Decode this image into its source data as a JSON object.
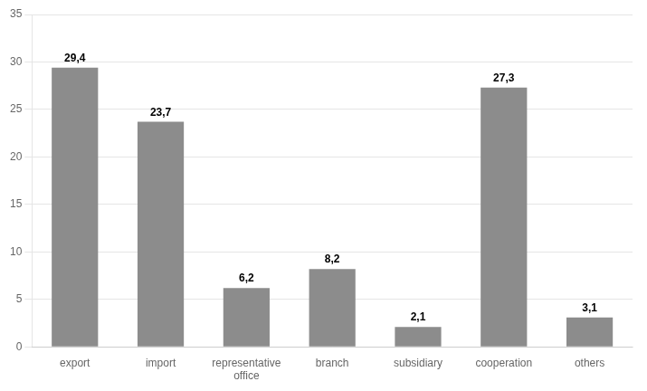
{
  "chart_data": {
    "type": "bar",
    "categories": [
      "export",
      "import",
      "representative\noffice",
      "branch",
      "subsidiary",
      "cooperation",
      "others"
    ],
    "values": [
      29.4,
      23.7,
      6.2,
      8.2,
      2.1,
      27.3,
      3.1
    ],
    "value_labels": [
      "29,4",
      "23,7",
      "6,2",
      "8,2",
      "2,1",
      "27,3",
      "3,1"
    ],
    "data_labels": true,
    "color": "#8c8c8c",
    "ylim": [
      0,
      35
    ],
    "yticks": [
      0,
      5,
      10,
      15,
      20,
      25,
      30,
      35
    ],
    "grid": true
  }
}
